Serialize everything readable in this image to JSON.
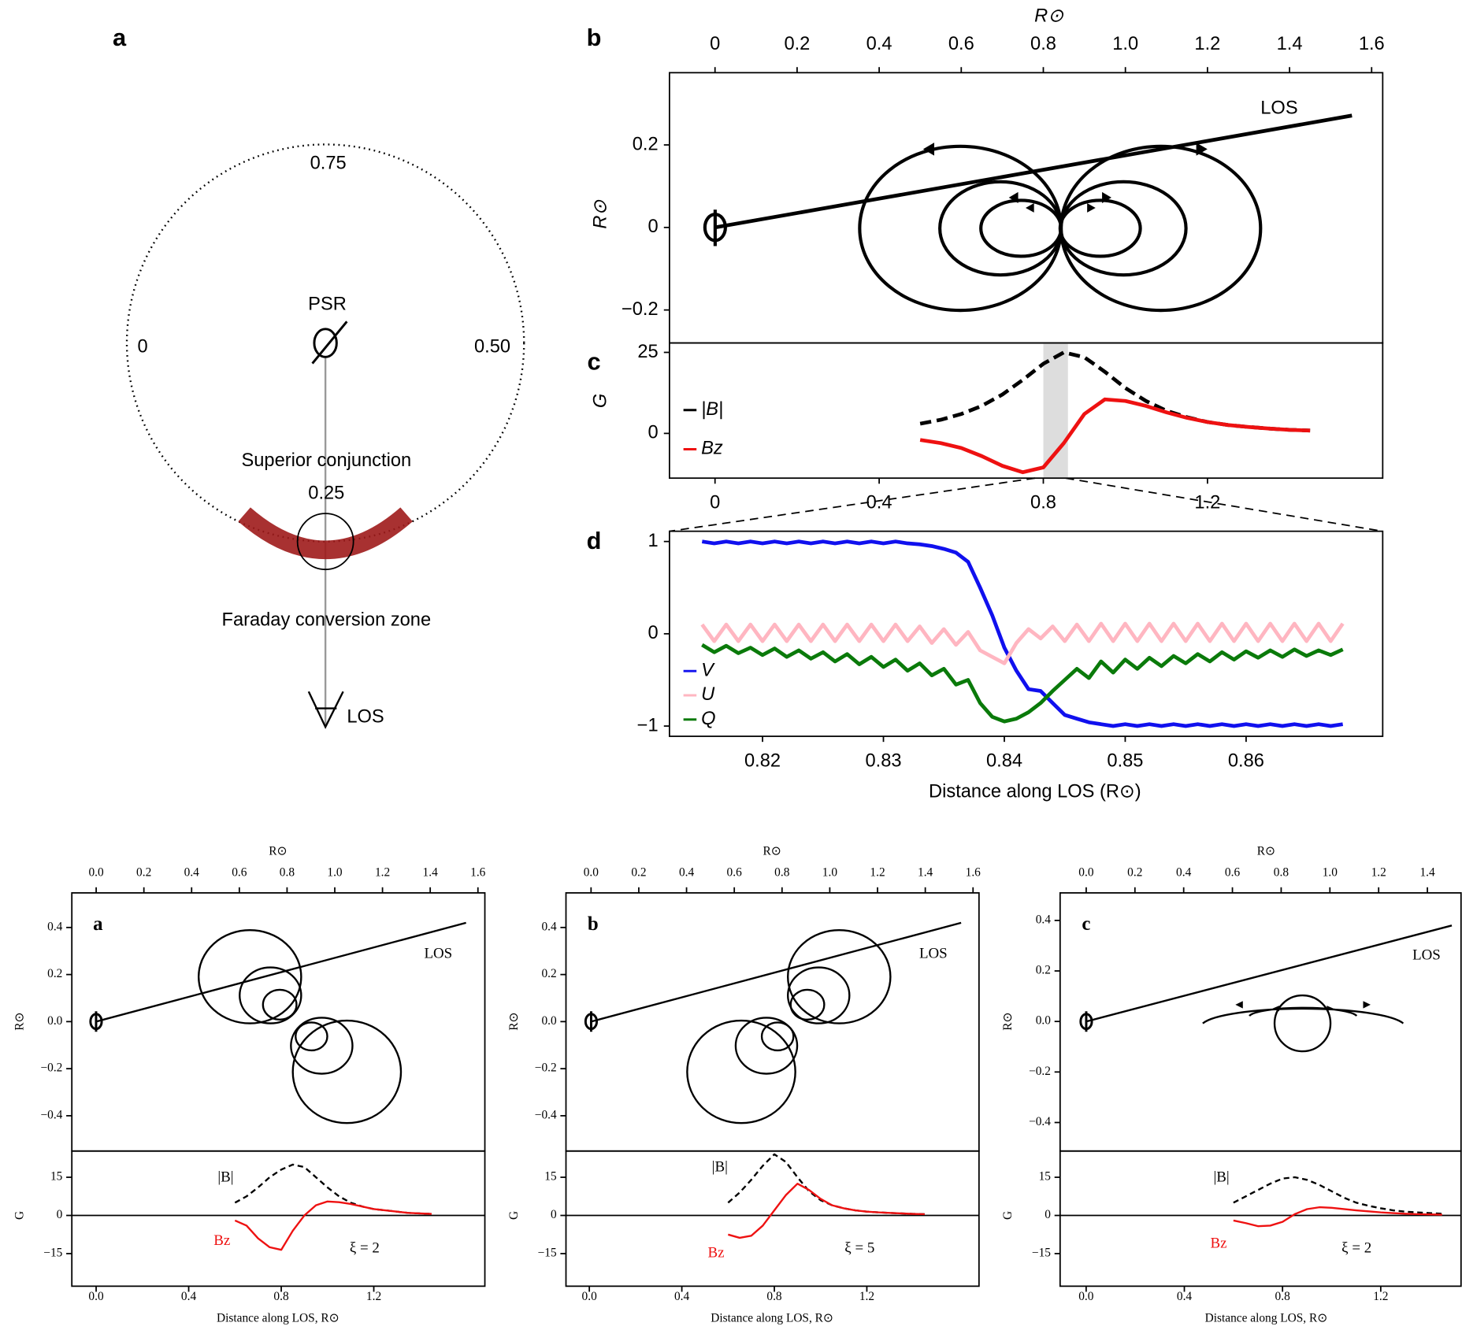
{
  "orbit_diagram": {
    "panel_label": "a",
    "phase_top": "0.75",
    "phase_left": "0",
    "phase_right": "0.50",
    "phase_bottom": "0.25",
    "pulsar_label": "PSR",
    "conjunction_label": "Superior conjunction",
    "zone_label": "Faraday conversion zone",
    "los_label": "LOS"
  },
  "chart_data": [
    {
      "type": "line",
      "panel_label": "b",
      "xlabel": "R⊙",
      "ylabel": "R⊙",
      "xlim": [
        -0.111,
        1.627
      ],
      "ylim": [
        -0.28,
        0.375
      ],
      "xticks": [
        0,
        0.2,
        0.4,
        0.6,
        0.8,
        {
          "value": 1,
          "label": "1.0"
        },
        1.2,
        1.4,
        1.6
      ],
      "yticks": [
        {
          "value": -0.2,
          "label": "−0.2"
        },
        0,
        0.2
      ],
      "x": [
        0,
        1.552
      ],
      "series": [
        {
          "name": "LOS",
          "color": "#000000",
          "values": [
            0,
            0.271
          ]
        }
      ]
    },
    {
      "type": "line",
      "panel_label": "c",
      "ylabel": "G",
      "xlim": [
        -0.111,
        1.627
      ],
      "ylim": [
        -13.8,
        27.9
      ],
      "xticks": [
        0,
        0.4,
        0.8,
        1.2
      ],
      "yticks": [
        0,
        25
      ],
      "highlight_x": [
        0.8,
        0.86
      ],
      "highlight_color": "#dddddd",
      "x": [
        0.5,
        0.55,
        0.6,
        0.65,
        0.7,
        0.75,
        0.8,
        0.85,
        0.9,
        0.95,
        1.0,
        1.05,
        1.1,
        1.15,
        1.2,
        1.25,
        1.3,
        1.35,
        1.4,
        1.45
      ],
      "series": [
        {
          "name": "|B|",
          "color": "#000000",
          "linestyle": "dashed",
          "values": [
            3,
            4.2,
            6,
            8.5,
            12,
            16.5,
            21.5,
            25,
            23.5,
            19,
            14,
            10,
            7,
            5,
            3.5,
            2.6,
            2,
            1.5,
            1.1,
            0.9
          ]
        },
        {
          "name": "Bz",
          "color": "#ee1111",
          "values": [
            -2,
            -3,
            -4.5,
            -7,
            -10,
            -12,
            -10.5,
            -3,
            6,
            10.5,
            10,
            8.5,
            6.5,
            4.8,
            3.5,
            2.6,
            2,
            1.5,
            1.1,
            0.9
          ]
        }
      ]
    },
    {
      "type": "line",
      "panel_label": "d",
      "xlabel": "Distance along LOS (R⊙)",
      "xlim": [
        0.8123,
        0.8713
      ],
      "ylim": [
        -1.111,
        1.111
      ],
      "xticks": [
        0.82,
        0.83,
        0.84,
        0.85,
        0.86
      ],
      "yticks": [
        {
          "value": -1,
          "label": "−1"
        },
        0,
        1
      ],
      "x": [
        0.815,
        0.816,
        0.817,
        0.818,
        0.819,
        0.82,
        0.821,
        0.822,
        0.823,
        0.824,
        0.825,
        0.826,
        0.827,
        0.828,
        0.829,
        0.83,
        0.831,
        0.832,
        0.833,
        0.834,
        0.835,
        0.836,
        0.837,
        0.838,
        0.839,
        0.84,
        0.841,
        0.842,
        0.843,
        0.844,
        0.845,
        0.846,
        0.847,
        0.848,
        0.849,
        0.85,
        0.851,
        0.852,
        0.853,
        0.854,
        0.855,
        0.856,
        0.857,
        0.858,
        0.859,
        0.86,
        0.861,
        0.862,
        0.863,
        0.864,
        0.865,
        0.866,
        0.867,
        0.868
      ],
      "series": [
        {
          "name": "V",
          "color": "#1010ee",
          "values": [
            1,
            0.98,
            1,
            0.98,
            1,
            0.98,
            1,
            0.98,
            1,
            0.98,
            1,
            0.98,
            1,
            0.98,
            1,
            0.98,
            1,
            0.98,
            0.97,
            0.95,
            0.92,
            0.88,
            0.78,
            0.5,
            0.2,
            -0.15,
            -0.4,
            -0.6,
            -0.62,
            -0.75,
            -0.88,
            -0.92,
            -0.96,
            -0.98,
            -1,
            -0.98,
            -1,
            -0.98,
            -1,
            -0.98,
            -1,
            -0.98,
            -1,
            -0.98,
            -1,
            -0.98,
            -1,
            -0.98,
            -1,
            -0.98,
            -1,
            -0.98,
            -1,
            -0.98
          ]
        },
        {
          "name": "U",
          "color": "#ffb6c1",
          "values": [
            0.1,
            -0.08,
            0.1,
            -0.08,
            0.1,
            -0.08,
            0.1,
            -0.08,
            0.1,
            -0.08,
            0.1,
            -0.08,
            0.1,
            -0.08,
            0.1,
            -0.08,
            0.1,
            -0.08,
            0.08,
            -0.1,
            0.05,
            -0.12,
            0.02,
            -0.18,
            -0.25,
            -0.32,
            -0.1,
            0.05,
            -0.05,
            0.08,
            -0.08,
            0.1,
            -0.08,
            0.11,
            -0.08,
            0.11,
            -0.08,
            0.11,
            -0.08,
            0.11,
            -0.08,
            0.11,
            -0.08,
            0.11,
            -0.08,
            0.11,
            -0.08,
            0.11,
            -0.08,
            0.11,
            -0.08,
            0.11,
            -0.08,
            0.11
          ]
        },
        {
          "name": "Q",
          "color": "#0a7a0a",
          "values": [
            -0.12,
            -0.2,
            -0.13,
            -0.21,
            -0.15,
            -0.23,
            -0.16,
            -0.25,
            -0.18,
            -0.27,
            -0.2,
            -0.3,
            -0.22,
            -0.33,
            -0.25,
            -0.36,
            -0.28,
            -0.4,
            -0.32,
            -0.45,
            -0.38,
            -0.55,
            -0.5,
            -0.75,
            -0.9,
            -0.95,
            -0.92,
            -0.85,
            -0.75,
            -0.62,
            -0.5,
            -0.38,
            -0.48,
            -0.3,
            -0.42,
            -0.28,
            -0.38,
            -0.26,
            -0.35,
            -0.24,
            -0.32,
            -0.22,
            -0.3,
            -0.2,
            -0.28,
            -0.19,
            -0.26,
            -0.18,
            -0.25,
            -0.17,
            -0.24,
            -0.18,
            -0.23,
            -0.17
          ]
        }
      ]
    },
    {
      "type": "line",
      "panel_label": "a",
      "xlabel": "R⊙",
      "ylabel": "R⊙",
      "xlim": [
        -0.102,
        1.629
      ],
      "ylim": [
        -0.55,
        0.547
      ],
      "xticks": [
        {
          "value": 0,
          "label": "0.0"
        },
        0.2,
        0.4,
        0.6,
        0.8,
        {
          "value": 1,
          "label": "1.0"
        },
        1.2,
        1.4,
        1.6
      ],
      "yticks": [
        {
          "value": -0.4,
          "label": "−0.4"
        },
        {
          "value": -0.2,
          "label": "−0.2"
        },
        {
          "value": 0,
          "label": "0.0"
        },
        0.2,
        0.4
      ],
      "x": [
        0,
        1.55
      ],
      "series": [
        {
          "name": "LOS",
          "color": "#000000",
          "values": [
            0,
            0.42
          ]
        }
      ]
    },
    {
      "type": "line",
      "ylabel": "G",
      "xlabel": "Distance along LOS, R⊙",
      "annotation": "ξ = 2",
      "xlim": [
        -0.105,
        1.68
      ],
      "ylim": [
        -27.8,
        25.3
      ],
      "xticks": [
        {
          "value": 0,
          "label": "0.0"
        },
        0.4,
        0.8,
        1.2
      ],
      "yticks": [
        {
          "value": -15,
          "label": "−15"
        },
        0,
        15
      ],
      "x": [
        0.6,
        0.65,
        0.7,
        0.75,
        0.8,
        0.85,
        0.9,
        0.95,
        1.0,
        1.05,
        1.1,
        1.15,
        1.2,
        1.25,
        1.3,
        1.35,
        1.4,
        1.45
      ],
      "series": [
        {
          "name": "|B|",
          "color": "#000000",
          "linestyle": "dashed",
          "values": [
            5,
            7.5,
            11,
            15,
            18,
            20,
            19,
            15,
            11,
            7.5,
            5,
            3.5,
            2.5,
            2,
            1.5,
            1,
            0.8,
            0.6
          ]
        },
        {
          "name": "Bz",
          "color": "#ee1111",
          "values": [
            -2,
            -4,
            -9,
            -12.5,
            -13.5,
            -6,
            0,
            4,
            5.5,
            5.2,
            4.5,
            3.5,
            2.5,
            2,
            1.5,
            1,
            0.8,
            0.6
          ]
        }
      ]
    },
    {
      "type": "line",
      "panel_label": "b",
      "xlabel": "R⊙",
      "ylabel": "R⊙",
      "xlim": [
        -0.105,
        1.625
      ],
      "ylim": [
        -0.55,
        0.547
      ],
      "xticks": [
        {
          "value": 0,
          "label": "0.0"
        },
        0.2,
        0.4,
        0.6,
        0.8,
        {
          "value": 1,
          "label": "1.0"
        },
        1.2,
        1.4,
        1.6
      ],
      "yticks": [
        {
          "value": -0.4,
          "label": "−0.4"
        },
        {
          "value": -0.2,
          "label": "−0.2"
        },
        {
          "value": 0,
          "label": "0.0"
        },
        0.2,
        0.4
      ],
      "x": [
        0,
        1.55
      ],
      "series": [
        {
          "name": "LOS",
          "color": "#000000",
          "values": [
            0,
            0.42
          ]
        }
      ]
    },
    {
      "type": "line",
      "ylabel": "G",
      "xlabel": "Distance along LOS, R⊙",
      "annotation": "ξ = 5",
      "xlim": [
        -0.101,
        1.685
      ],
      "ylim": [
        -27.8,
        25.3
      ],
      "xticks": [
        {
          "value": 0,
          "label": "0.0"
        },
        0.4,
        0.8,
        1.2
      ],
      "yticks": [
        {
          "value": -15,
          "label": "−15"
        },
        0,
        15
      ],
      "x": [
        0.6,
        0.65,
        0.7,
        0.75,
        0.8,
        0.85,
        0.9,
        0.95,
        1.0,
        1.05,
        1.1,
        1.15,
        1.2,
        1.25,
        1.3,
        1.35,
        1.4,
        1.45
      ],
      "series": [
        {
          "name": "|B|",
          "color": "#000000",
          "linestyle": "dashed",
          "values": [
            5,
            9,
            14,
            19.5,
            24,
            21,
            15,
            9.5,
            6,
            4,
            2.8,
            2,
            1.5,
            1.2,
            1,
            0.8,
            0.6,
            0.5
          ]
        },
        {
          "name": "Bz",
          "color": "#ee1111",
          "values": [
            -7.5,
            -8.8,
            -8,
            -4,
            2,
            8,
            12.5,
            10,
            6.5,
            4,
            2.8,
            2,
            1.5,
            1.2,
            1,
            0.8,
            0.6,
            0.5
          ]
        }
      ]
    },
    {
      "type": "line",
      "panel_label": "c",
      "xlabel": "R⊙",
      "ylabel": "R⊙",
      "xlim": [
        -0.107,
        1.538
      ],
      "ylim": [
        -0.513,
        0.509
      ],
      "xticks": [
        {
          "value": 0,
          "label": "0.0"
        },
        0.2,
        0.4,
        0.6,
        0.8,
        {
          "value": 1,
          "label": "1.0"
        },
        1.2,
        1.4
      ],
      "yticks": [
        {
          "value": -0.4,
          "label": "−0.4"
        },
        {
          "value": -0.2,
          "label": "−0.2"
        },
        {
          "value": 0,
          "label": "0.0"
        },
        0.2,
        0.4
      ],
      "x": [
        0,
        1.5
      ],
      "series": [
        {
          "name": "LOS",
          "color": "#000000",
          "values": [
            0,
            0.38
          ]
        }
      ]
    },
    {
      "type": "line",
      "ylabel": "G",
      "xlabel": "Distance along LOS, R⊙",
      "annotation": "ξ = 2",
      "xlim": [
        -0.106,
        1.527
      ],
      "ylim": [
        -27.8,
        25.3
      ],
      "xticks": [
        {
          "value": 0,
          "label": "0.0"
        },
        0.4,
        0.8,
        1.2
      ],
      "yticks": [
        {
          "value": -15,
          "label": "−15"
        },
        0,
        15
      ],
      "x": [
        0.6,
        0.65,
        0.7,
        0.75,
        0.8,
        0.85,
        0.9,
        0.95,
        1.0,
        1.05,
        1.1,
        1.15,
        1.2,
        1.25,
        1.3,
        1.35,
        1.4,
        1.45
      ],
      "series": [
        {
          "name": "|B|",
          "color": "#000000",
          "linestyle": "dashed",
          "values": [
            5,
            7.5,
            10,
            12.5,
            14.5,
            15,
            14,
            12,
            9.5,
            7,
            5,
            3.8,
            2.8,
            2,
            1.5,
            1.2,
            0.9,
            0.7
          ]
        },
        {
          "name": "Bz",
          "color": "#ee1111",
          "values": [
            -2,
            -3,
            -4.2,
            -4,
            -2.5,
            0.5,
            2.5,
            3.2,
            3,
            2.5,
            2,
            1.6,
            1.2,
            0.9,
            0.7,
            0.5,
            0.4,
            0.3
          ]
        }
      ]
    }
  ]
}
